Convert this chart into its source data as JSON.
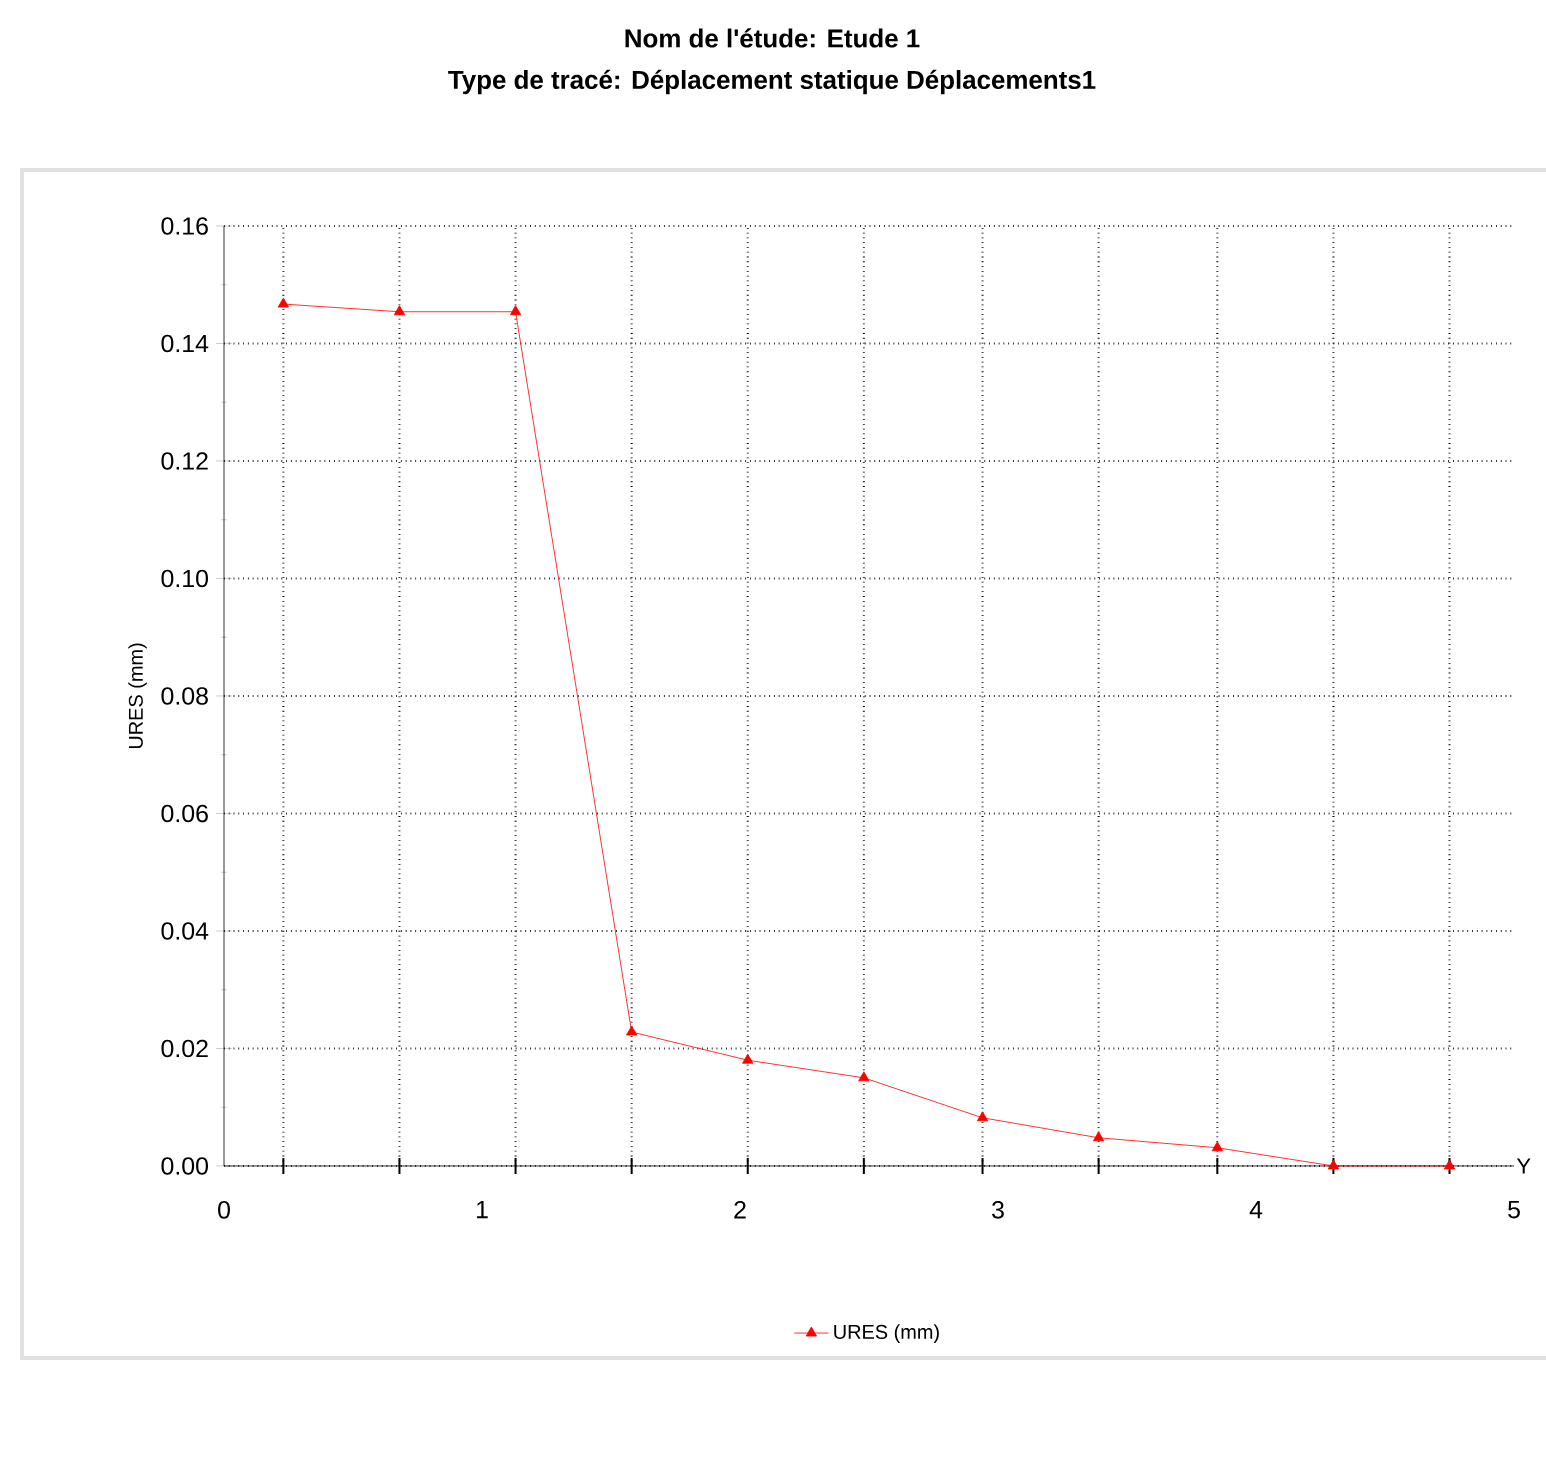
{
  "chart_data": {
    "type": "line",
    "title": "Nom de l'étude: Etude 1",
    "subtitle": "Type de tracé: Déplacement statique Déplacements1",
    "xlabel": "Y",
    "ylabel": "URES (mm)",
    "series": [
      {
        "name": "URES (mm)",
        "color": "#ff0000",
        "x": [
          0.23,
          0.68,
          1.13,
          1.58,
          2.03,
          2.48,
          2.94,
          3.39,
          3.85,
          4.3,
          4.75
        ],
        "values": [
          0.1467,
          0.1454,
          0.1454,
          0.0228,
          0.018,
          0.015,
          0.0082,
          0.0048,
          0.0031,
          0,
          0
        ]
      }
    ],
    "xlim": [
      0,
      5
    ],
    "xticks": [
      0,
      1,
      2,
      3,
      4,
      5,
      {
        "value": 0.23,
        "label": null
      },
      {
        "value": 0.68,
        "label": null
      },
      {
        "value": 1.13,
        "label": null
      },
      {
        "value": 1.58,
        "label": null
      },
      {
        "value": 2.03,
        "label": null
      },
      {
        "value": 2.48,
        "label": null
      },
      {
        "value": 2.94,
        "label": null
      },
      {
        "value": 3.39,
        "label": null
      },
      {
        "value": 3.85,
        "label": null
      },
      {
        "value": 4.3,
        "label": null
      },
      {
        "value": 4.75,
        "label": null
      }
    ],
    "ylim": [
      0,
      0.16
    ],
    "yticks": [
      {
        "value": 0,
        "label": "0.00"
      },
      {
        "value": 0.02,
        "label": "0.02"
      },
      {
        "value": 0.04,
        "label": "0.04"
      },
      {
        "value": 0.06,
        "label": "0.06"
      },
      {
        "value": 0.08,
        "label": "0.08"
      },
      {
        "value": 0.1,
        "label": "0.10"
      },
      {
        "value": 0.12,
        "label": "0.12"
      },
      {
        "value": 0.14,
        "label": "0.14"
      },
      {
        "value": 0.16,
        "label": "0.16"
      }
    ],
    "grid": true,
    "legend": "bottom",
    "marker": "triangle",
    "line_style": "solid"
  }
}
